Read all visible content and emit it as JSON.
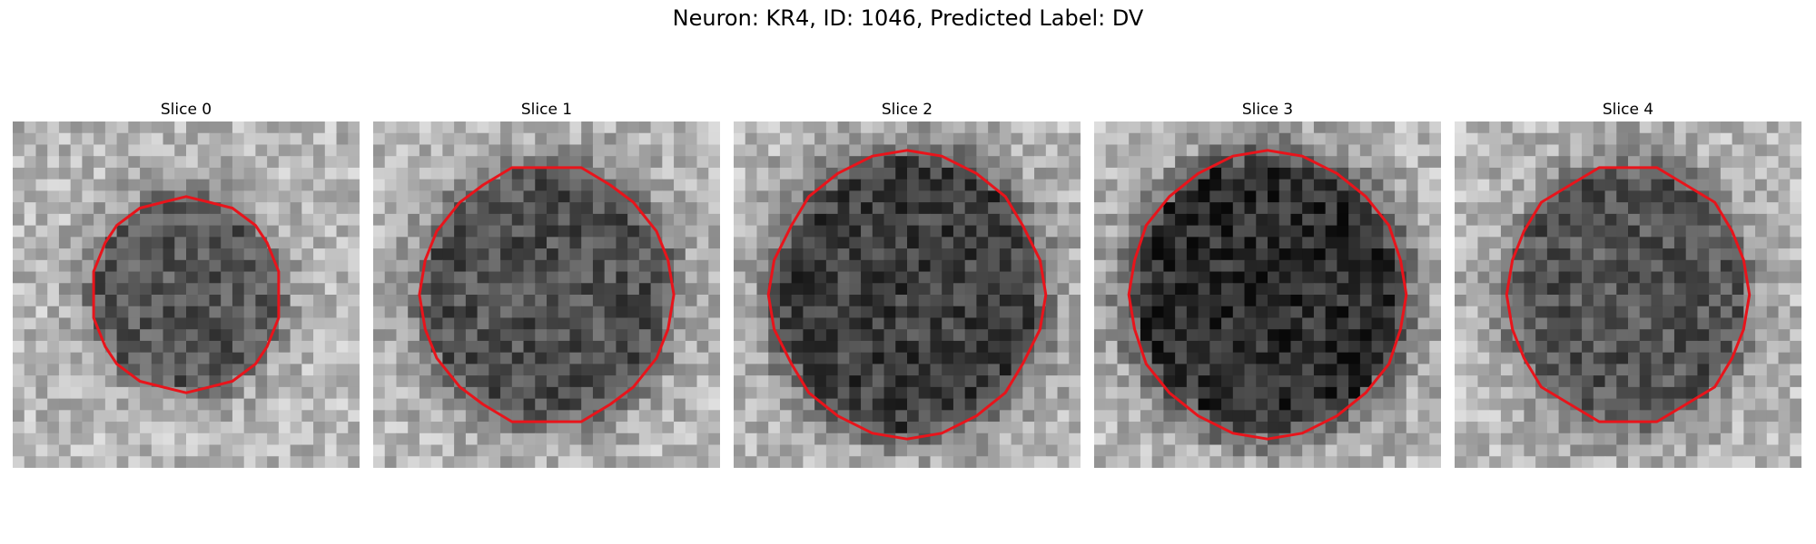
{
  "figure": {
    "title": "Neuron: KR4, ID: 1046, Predicted Label: DV",
    "panels": [
      {
        "title": "Slice 0",
        "radius_x": 0.28,
        "radius_y": 0.29,
        "darkness": 0.5,
        "image": "grayscale noisy micrograph of a dark circular cell body on light background"
      },
      {
        "title": "Slice 1",
        "radius_x": 0.37,
        "radius_y": 0.38,
        "darkness": 0.55,
        "image": "grayscale noisy micrograph of a dark circular cell body on light background"
      },
      {
        "title": "Slice 2",
        "radius_x": 0.4,
        "radius_y": 0.42,
        "darkness": 0.68,
        "image": "grayscale noisy micrograph of a dark circular cell body on light background"
      },
      {
        "title": "Slice 3",
        "radius_x": 0.41,
        "radius_y": 0.42,
        "darkness": 0.8,
        "image": "grayscale noisy micrograph of a dark circular cell body on light background"
      },
      {
        "title": "Slice 4",
        "radius_x": 0.35,
        "radius_y": 0.38,
        "darkness": 0.52,
        "image": "grayscale noisy micrograph of a dark circular cell body on light background"
      }
    ],
    "outline_color": "#e8141b"
  }
}
